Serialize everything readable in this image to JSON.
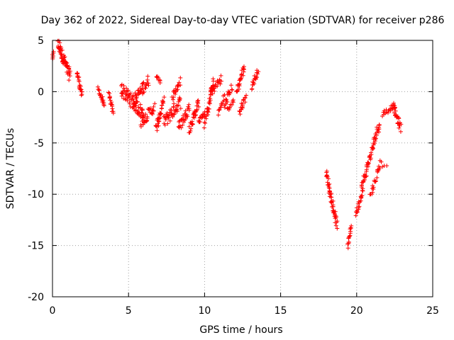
{
  "chart_data": {
    "type": "scatter",
    "title": "Day 362 of 2022, Sidereal Day-to-day VTEC variation (SDTVAR) for receiver p286",
    "xlabel": "GPS time / hours",
    "ylabel": "SDTVAR / TECUs",
    "xlim": [
      0,
      25
    ],
    "ylim": [
      -20,
      5
    ],
    "xticks": [
      0,
      5,
      10,
      15,
      20,
      25
    ],
    "yticks": [
      5,
      0,
      -5,
      -10,
      -15,
      -20
    ],
    "xtick_labels": [
      "0",
      "5",
      "10",
      "15",
      "20",
      "25"
    ],
    "ytick_labels": [
      "5",
      "0",
      "-5",
      "-10",
      "-15",
      "-20"
    ],
    "grid": true,
    "marker": "+",
    "color": "#ff0000",
    "segments": [
      {
        "x0": 0.0,
        "x1": 0.05,
        "y0": 3.2,
        "y1": 3.9,
        "n": 6
      },
      {
        "x0": 0.35,
        "x1": 1.15,
        "y0": 4.7,
        "y1": 1.5,
        "n": 60,
        "spread": 1.2
      },
      {
        "x0": 1.6,
        "x1": 1.95,
        "y0": 2.0,
        "y1": -0.4,
        "n": 25,
        "spread": 0.6
      },
      {
        "x0": 3.0,
        "x1": 3.4,
        "y0": 0.3,
        "y1": -1.3,
        "n": 20,
        "spread": 0.5
      },
      {
        "x0": 3.7,
        "x1": 4.0,
        "y0": -0.3,
        "y1": -2.1,
        "n": 16,
        "spread": 0.5
      },
      {
        "x0": 4.5,
        "x1": 6.0,
        "y0": 0.3,
        "y1": -2.2,
        "n": 70,
        "spread": 1.4
      },
      {
        "x0": 5.3,
        "x1": 6.3,
        "y0": -1.0,
        "y1": 1.1,
        "n": 40,
        "spread": 1.2
      },
      {
        "x0": 5.8,
        "x1": 6.7,
        "y0": -3.0,
        "y1": -1.5,
        "n": 30,
        "spread": 1.0
      },
      {
        "x0": 6.8,
        "x1": 7.3,
        "y0": -3.7,
        "y1": -1.0,
        "n": 30,
        "spread": 1.0
      },
      {
        "x0": 6.8,
        "x1": 7.1,
        "y0": 1.6,
        "y1": 0.9,
        "n": 8,
        "spread": 0.3
      },
      {
        "x0": 7.3,
        "x1": 8.4,
        "y0": -3.0,
        "y1": -1.0,
        "n": 45,
        "spread": 1.3
      },
      {
        "x0": 7.9,
        "x1": 8.4,
        "y0": -0.5,
        "y1": 1.0,
        "n": 18,
        "spread": 0.8
      },
      {
        "x0": 8.3,
        "x1": 9.0,
        "y0": -3.5,
        "y1": -1.5,
        "n": 30,
        "spread": 1.0
      },
      {
        "x0": 9.0,
        "x1": 9.6,
        "y0": -3.8,
        "y1": -1.0,
        "n": 30,
        "spread": 1.0
      },
      {
        "x0": 9.6,
        "x1": 10.0,
        "y0": -3.0,
        "y1": -2.0,
        "n": 14,
        "spread": 0.5
      },
      {
        "x0": 10.0,
        "x1": 10.6,
        "y0": -3.1,
        "y1": 0.9,
        "n": 35,
        "spread": 1.0
      },
      {
        "x0": 10.4,
        "x1": 11.1,
        "y0": 0.0,
        "y1": 1.2,
        "n": 22,
        "spread": 0.8
      },
      {
        "x0": 10.9,
        "x1": 11.3,
        "y0": -2.1,
        "y1": -0.5,
        "n": 14,
        "spread": 0.6
      },
      {
        "x0": 11.3,
        "x1": 11.8,
        "y0": -1.5,
        "y1": 0.5,
        "n": 18,
        "spread": 0.8
      },
      {
        "x0": 11.5,
        "x1": 11.9,
        "y0": -1.8,
        "y1": -0.9,
        "n": 10,
        "spread": 0.4
      },
      {
        "x0": 12.1,
        "x1": 12.6,
        "y0": 0.0,
        "y1": 2.4,
        "n": 25,
        "spread": 0.8
      },
      {
        "x0": 12.3,
        "x1": 12.7,
        "y0": -2.0,
        "y1": -0.5,
        "n": 18,
        "spread": 0.7
      },
      {
        "x0": 13.1,
        "x1": 13.5,
        "y0": 0.4,
        "y1": 2.1,
        "n": 18,
        "spread": 0.6
      },
      {
        "x0": 18.0,
        "x1": 18.7,
        "y0": -8.0,
        "y1": -13.0,
        "n": 50,
        "spread": 0.8
      },
      {
        "x0": 19.4,
        "x1": 19.65,
        "y0": -15.2,
        "y1": -13.0,
        "n": 16,
        "spread": 0.4
      },
      {
        "x0": 19.95,
        "x1": 20.4,
        "y0": -12.0,
        "y1": -9.5,
        "n": 22,
        "spread": 0.6
      },
      {
        "x0": 20.3,
        "x1": 21.5,
        "y0": -9.5,
        "y1": -3.0,
        "n": 60,
        "spread": 1.0
      },
      {
        "x0": 20.9,
        "x1": 21.6,
        "y0": -10.2,
        "y1": -6.8,
        "n": 22,
        "spread": 0.7
      },
      {
        "x0": 21.7,
        "x1": 22.5,
        "y0": -2.2,
        "y1": -1.3,
        "n": 18,
        "spread": 0.5
      },
      {
        "x0": 22.4,
        "x1": 22.9,
        "y0": -1.5,
        "y1": -3.6,
        "n": 25,
        "spread": 0.8
      },
      {
        "x0": 21.7,
        "x1": 22.0,
        "y0": -7.3,
        "y1": -7.2,
        "n": 3,
        "spread": 0.1
      }
    ]
  }
}
